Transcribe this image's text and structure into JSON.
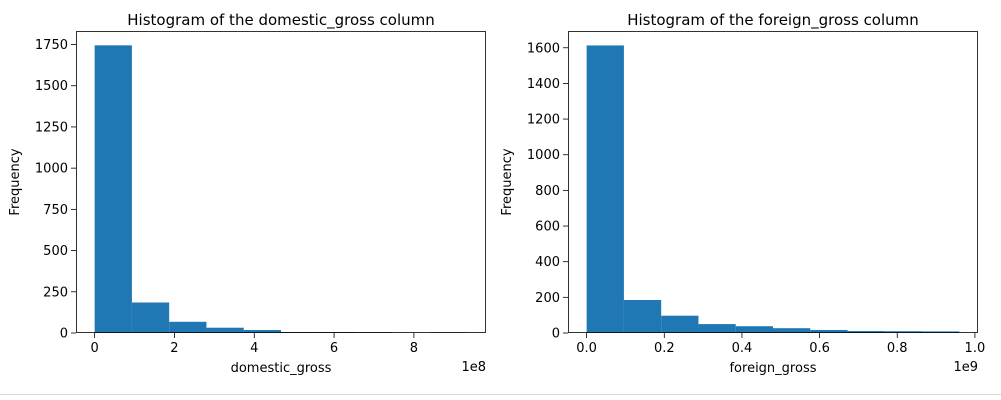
{
  "chart_data": [
    {
      "type": "bar",
      "title": "Histogram of the domestic_gross column",
      "xlabel": "domestic_gross",
      "ylabel": "Frequency",
      "x_offset_label": "1e8",
      "bin_edges": [
        0.0,
        0.934,
        1.868,
        2.802,
        3.736,
        4.67,
        5.604,
        6.538,
        7.472,
        8.406,
        9.34
      ],
      "values": [
        1745,
        185,
        68,
        32,
        18,
        6,
        6,
        4,
        0,
        3
      ],
      "xlim": [
        -0.467,
        9.807
      ],
      "ylim": [
        0,
        1832
      ],
      "xticks": [
        0,
        2,
        4,
        6,
        8
      ],
      "xtick_labels": [
        "0",
        "2",
        "4",
        "6",
        "8"
      ],
      "yticks": [
        0,
        250,
        500,
        750,
        1000,
        1250,
        1500,
        1750
      ],
      "ytick_labels": [
        "0",
        "250",
        "500",
        "750",
        "1000",
        "1250",
        "1500",
        "1750"
      ],
      "color": "#1f77b4",
      "grid": false
    },
    {
      "type": "bar",
      "title": "Histogram of the foreign_gross column",
      "xlabel": "foreign_gross",
      "ylabel": "Frequency",
      "x_offset_label": "1e9",
      "bin_edges": [
        0.0,
        0.096,
        0.192,
        0.288,
        0.384,
        0.48,
        0.576,
        0.672,
        0.768,
        0.864,
        0.96
      ],
      "values": [
        1613,
        185,
        97,
        50,
        38,
        27,
        17,
        11,
        10,
        9
      ],
      "xlim": [
        -0.048,
        1.008
      ],
      "ylim": [
        0,
        1694
      ],
      "xticks": [
        0.0,
        0.2,
        0.4,
        0.6,
        0.8,
        1.0
      ],
      "xtick_labels": [
        "0.0",
        "0.2",
        "0.4",
        "0.6",
        "0.8",
        "1.0"
      ],
      "yticks": [
        0,
        200,
        400,
        600,
        800,
        1000,
        1200,
        1400,
        1600
      ],
      "ytick_labels": [
        "0",
        "200",
        "400",
        "600",
        "800",
        "1000",
        "1200",
        "1400",
        "1600"
      ],
      "color": "#1f77b4",
      "grid": false
    }
  ]
}
